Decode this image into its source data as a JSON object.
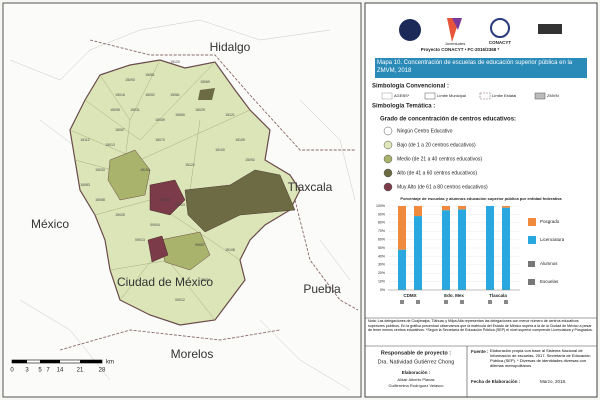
{
  "map": {
    "states": [
      "Hidalgo",
      "México",
      "Tlaxcala",
      "Ciudad de México",
      "Puebla",
      "Morelos"
    ],
    "municipalities": [
      "15069",
      "15120",
      "15081",
      "15016",
      "15095",
      "15112",
      "15033",
      "15104",
      "15057",
      "15039",
      "15060",
      "15058",
      "15031",
      "15070",
      "15029",
      "15083",
      "15025",
      "15002",
      "15013",
      "15121",
      "15109",
      "15122",
      "15100",
      "15093",
      "15061",
      "15108",
      "15084",
      "15092",
      "09003",
      "09007",
      "09012",
      "09013",
      "09004",
      "09016"
    ],
    "scale": {
      "ticks": [
        "0",
        "3",
        "5",
        "7",
        "14",
        "21",
        "28"
      ],
      "unit": "km"
    }
  },
  "panel": {
    "logos": [
      "Juventudes",
      "Proyecto CONACYT • FC-2016/2368 *",
      "CONACYT"
    ],
    "title": "Mapa 10. Concentración de escuelas de educación superior pública en la ZMVM, 2018",
    "conventional": {
      "heading": "Simbología Convencional :",
      "items": [
        "AGEBS*",
        "Límite Municipal",
        "Límite Estatal",
        "ZMVM"
      ]
    },
    "thematic": {
      "heading": "Simbología Temática :",
      "subheading": "Grado de concentración de centros educativos:",
      "items": [
        {
          "label": "Ningún Centro Educativo",
          "color": "#ffffff"
        },
        {
          "label": "Bajo (de 1 a 20 centros educativos)",
          "color": "#dfe6b8"
        },
        {
          "label": "Medio (de 21 a 40 centros educativos)",
          "color": "#a9b36b"
        },
        {
          "label": "Alto (de 41 a 60 centros educativos)",
          "color": "#6c6b43"
        },
        {
          "label": "Muy Alto (de 61 a 80 centros educativos)",
          "color": "#7b3b49"
        }
      ]
    },
    "note": "Nota: Las delegaciones de Cuajimalpa, Tláhuac y Milpa Alta representan las delegaciones con menor número de centros educativos superiores públicos. En la gráfica porcentual observamos que la matrícula del Estado de México supera a la de la Ciudad de México a pesar de tener menos centros educativos. *Según la Secretaría de Educación Pública (SEP) el nivel superior comprende Licenciatura y Posgrados.",
    "responsible_label": "Responsable de proyecto :",
    "responsible": "Dra. Natividad Gutiérrez Chong",
    "elaboration_label": "Elaboración :",
    "elaboration": [
      "Aldair Alberto Planas",
      "Guillermina Rodríguez Velasco"
    ],
    "source_label": "Fuente :",
    "source": "Elaboración propia con base al Sistema Nacional de Información de escuelas, 2017. Secretaría de Educación Pública (SEP). * Diversas de identidades diversas con dilemas metropolitanos",
    "date_label": "Fecha de Elaboración :",
    "date": "Marzo, 2018."
  },
  "chart_data": {
    "type": "stacked-bar",
    "title": "Porcentaje de escuelas y alumnos educación superior pública por entidad federativa",
    "categories": [
      "CDMX",
      null,
      "Edo. Mex",
      null,
      "Tlaxcala",
      null
    ],
    "series": [
      {
        "name": "Licenciatura",
        "color": "#29a8e0",
        "values": [
          48,
          88,
          95,
          96,
          100,
          98
        ]
      },
      {
        "name": "Posgrado",
        "color": "#f08a3c",
        "values": [
          52,
          12,
          5,
          4,
          0,
          2
        ]
      }
    ],
    "icons": [
      "Alumnos",
      "Escuelas"
    ],
    "ylim": [
      0,
      100
    ],
    "yticks": [
      {
        "value": 0,
        "label": "0%"
      },
      {
        "value": 10,
        "label": "10%"
      },
      {
        "value": 20,
        "label": "20%"
      },
      {
        "value": 30,
        "label": "30%"
      },
      {
        "value": 40,
        "label": "40%"
      },
      {
        "value": 50,
        "label": "50%"
      },
      {
        "value": 60,
        "label": "60%"
      },
      {
        "value": 70,
        "label": "70%"
      },
      {
        "value": 80,
        "label": "80%"
      },
      {
        "value": 90,
        "label": "90%"
      },
      {
        "value": 100,
        "label": "100%"
      }
    ],
    "grid": true
  }
}
